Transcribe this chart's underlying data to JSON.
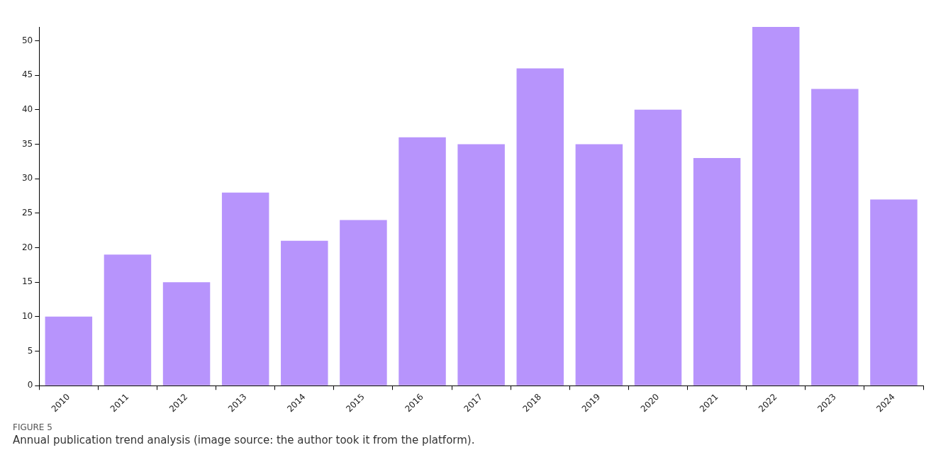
{
  "chart_data": {
    "type": "bar",
    "categories": [
      "2010",
      "2011",
      "2012",
      "2013",
      "2014",
      "2015",
      "2016",
      "2017",
      "2018",
      "2019",
      "2020",
      "2021",
      "2022",
      "2023",
      "2024"
    ],
    "values": [
      10,
      19,
      15,
      28,
      21,
      24,
      36,
      35,
      46,
      35,
      40,
      33,
      52,
      43,
      27
    ],
    "color": "#b794fc",
    "ylim": [
      0,
      52
    ],
    "yticks": [
      0,
      5,
      10,
      15,
      20,
      25,
      30,
      35,
      40,
      45,
      50
    ],
    "grid": false,
    "legend": false,
    "annotations": [
      "FIGURE 5",
      "Annual publication trend analysis (image source: the author took it from the platform)."
    ]
  }
}
